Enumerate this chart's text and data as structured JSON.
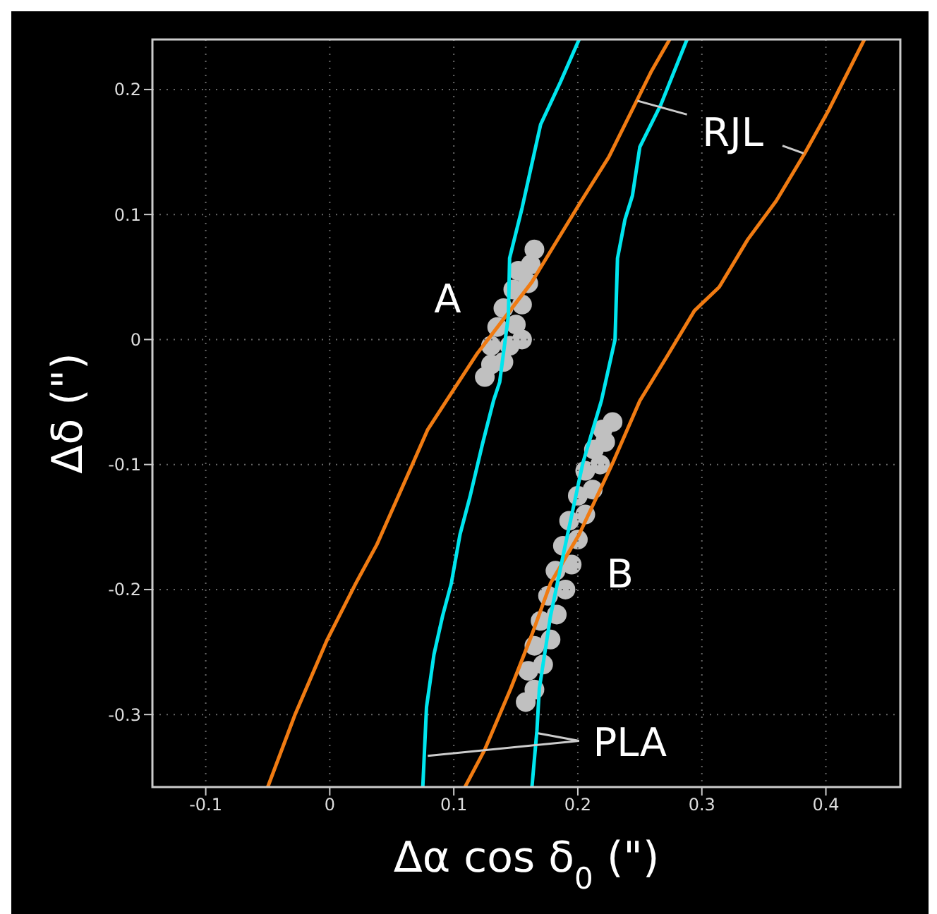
{
  "chart_data": {
    "type": "line",
    "xlabel": "Δα cos δ$_{0}$ (\")",
    "ylabel": "Δδ (\")",
    "xlim": [
      -0.143,
      0.46
    ],
    "ylim": [
      -0.358,
      0.24
    ],
    "xticks": [
      -0.1,
      0,
      0.1,
      0.2,
      0.3,
      0.4
    ],
    "yticks": [
      -0.3,
      -0.2,
      -0.1,
      0,
      0.1,
      0.2
    ],
    "grid": true,
    "legend": false,
    "line_style": "solid",
    "annotations": [
      "A",
      "B",
      "RJL",
      "PLA"
    ],
    "series": [
      {
        "type": "scatter",
        "color": "#c0c0c0",
        "x": [
          0.125,
          0.13,
          0.14,
          0.13,
          0.145,
          0.155,
          0.135,
          0.15,
          0.14,
          0.155,
          0.148,
          0.16,
          0.152,
          0.162,
          0.165
        ],
        "values": [
          -0.03,
          -0.02,
          -0.018,
          -0.005,
          -0.005,
          0,
          0.01,
          0.012,
          0.025,
          0.028,
          0.04,
          0.045,
          0.055,
          0.06,
          0.072
        ]
      },
      {
        "type": "scatter",
        "color": "#c0c0c0",
        "x": [
          0.158,
          0.165,
          0.16,
          0.172,
          0.165,
          0.178,
          0.17,
          0.183,
          0.176,
          0.19,
          0.182,
          0.195,
          0.188,
          0.2,
          0.193,
          0.206,
          0.2,
          0.212,
          0.206,
          0.218,
          0.213,
          0.222,
          0.22,
          0.228
        ],
        "values": [
          -0.29,
          -0.28,
          -0.265,
          -0.26,
          -0.245,
          -0.24,
          -0.225,
          -0.22,
          -0.205,
          -0.2,
          -0.185,
          -0.18,
          -0.165,
          -0.16,
          -0.145,
          -0.14,
          -0.125,
          -0.12,
          -0.105,
          -0.1,
          -0.088,
          -0.082,
          -0.072,
          -0.066
        ]
      },
      {
        "color": "#f07b12",
        "x": [
          -0.05,
          -0.028,
          -0.002,
          0.021,
          0.038,
          0.067,
          0.079,
          0.094,
          0.119,
          0.163,
          0.169,
          0.201,
          0.225,
          0.248,
          0.259,
          0.274
        ],
        "values": [
          -0.358,
          -0.3,
          -0.24,
          -0.195,
          -0.164,
          -0.099,
          -0.072,
          -0.049,
          -0.011,
          0.046,
          0.056,
          0.108,
          0.146,
          0.192,
          0.214,
          0.24
        ]
      },
      {
        "color": "#f07b12",
        "x": [
          0.109,
          0.125,
          0.146,
          0.163,
          0.178,
          0.201,
          0.228,
          0.25,
          0.271,
          0.294,
          0.314,
          0.337,
          0.36,
          0.383,
          0.402,
          0.431
        ],
        "values": [
          -0.358,
          -0.328,
          -0.279,
          -0.236,
          -0.195,
          -0.156,
          -0.099,
          -0.049,
          -0.015,
          0.023,
          0.042,
          0.08,
          0.111,
          0.149,
          0.183,
          0.24
        ]
      },
      {
        "color": "#00e5ee",
        "x": [
          0.075,
          0.078,
          0.084,
          0.091,
          0.098,
          0.105,
          0.113,
          0.123,
          0.132,
          0.137,
          0.144,
          0.145,
          0.155,
          0.17,
          0.186,
          0.201
        ],
        "values": [
          -0.358,
          -0.294,
          -0.252,
          -0.221,
          -0.195,
          -0.156,
          -0.126,
          -0.084,
          -0.049,
          -0.034,
          0.019,
          0.065,
          0.105,
          0.172,
          0.206,
          0.24
        ]
      },
      {
        "color": "#00e5ee",
        "x": [
          0.163,
          0.167,
          0.169,
          0.178,
          0.19,
          0.204,
          0.219,
          0.23,
          0.232,
          0.238,
          0.244,
          0.25,
          0.267,
          0.288
        ],
        "values": [
          -0.358,
          -0.313,
          -0.279,
          -0.221,
          -0.164,
          -0.099,
          -0.049,
          0,
          0.065,
          0.096,
          0.115,
          0.154,
          0.188,
          0.24
        ]
      }
    ]
  }
}
